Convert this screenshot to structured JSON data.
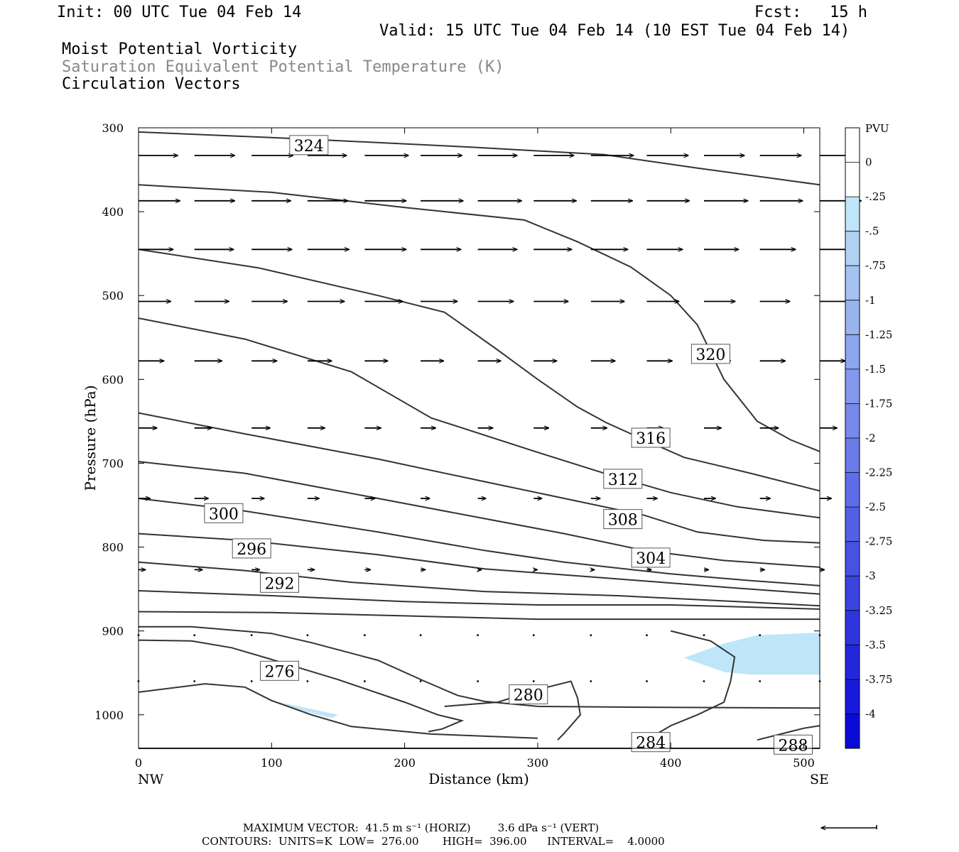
{
  "header": {
    "init": "Init: 00 UTC Tue 04 Feb 14",
    "fcst": "Fcst:   15 h",
    "valid": "Valid: 15 UTC Tue 04 Feb 14 (10 EST Tue 04 Feb 14)",
    "line1": "Moist Potential Vorticity",
    "line2": "Saturation Equivalent Potential Temperature (K)",
    "line3": "Circulation Vectors"
  },
  "footer": {
    "max_vector": "MAXIMUM VECTOR:  41.5 m s⁻¹ (HORIZ)        3.6 dPa s⁻¹ (VERT)",
    "contours": "CONTOURS:  UNITS=K  LOW=  276.00       HIGH=  396.00      INTERVAL=    4.0000"
  },
  "colors": {
    "contour": "#333333",
    "pv_fill": "#bfe6f8",
    "colorbar": [
      "#ffffff",
      "#ffffff",
      "#bfe6f8",
      "#b2d2f4",
      "#a6c2f2",
      "#9ab4f0",
      "#8ea6ee",
      "#8398ec",
      "#7789ea",
      "#6b7be8",
      "#5f6de6",
      "#535fe4",
      "#4751e2",
      "#3b43e0",
      "#2f35de",
      "#2327dc",
      "#1719da",
      "#0b0bd8"
    ]
  },
  "chart_data": {
    "type": "cross-section contour",
    "xlabel": "Distance (km)",
    "ylabel": "Pressure (hPa)",
    "xlim": [
      0,
      512
    ],
    "ylim": [
      1040,
      300
    ],
    "y_scale": "linear, inverted",
    "x_ticks": [
      "0",
      "100",
      "200",
      "300",
      "400",
      "500"
    ],
    "y_ticks": [
      "300",
      "400",
      "500",
      "600",
      "700",
      "800",
      "900",
      "1000"
    ],
    "left_end_label": "NW",
    "right_end_label": "SE",
    "colorbar": {
      "unit": "PVU",
      "tick_labels": [
        "0",
        "-.25",
        "-.5",
        "-.75",
        "-1",
        "-1.25",
        "-1.5",
        "-1.75",
        "-2",
        "-2.25",
        "-2.5",
        "-2.75",
        "-3",
        "-3.25",
        "-3.5",
        "-3.75",
        "-4"
      ]
    },
    "contours": [
      {
        "label": "324",
        "points": [
          [
            0,
            305
          ],
          [
            120,
            313
          ],
          [
            250,
            323
          ],
          [
            350,
            332
          ],
          [
            420,
            348
          ],
          [
            512,
            368
          ]
        ],
        "label_at": [
          128,
          321
        ]
      },
      {
        "label": "320",
        "points": [
          [
            0,
            368
          ],
          [
            100,
            377
          ],
          [
            200,
            395
          ],
          [
            290,
            410
          ],
          [
            330,
            436
          ],
          [
            370,
            466
          ],
          [
            400,
            500
          ],
          [
            420,
            535
          ],
          [
            440,
            600
          ],
          [
            465,
            650
          ],
          [
            490,
            672
          ],
          [
            512,
            686
          ]
        ],
        "label_at": [
          430,
          570
        ]
      },
      {
        "label": "316",
        "points": [
          [
            0,
            445
          ],
          [
            90,
            467
          ],
          [
            180,
            500
          ],
          [
            230,
            520
          ],
          [
            270,
            565
          ],
          [
            300,
            600
          ],
          [
            330,
            633
          ],
          [
            352,
            652
          ],
          [
            380,
            672
          ],
          [
            410,
            693
          ],
          [
            460,
            712
          ],
          [
            512,
            733
          ]
        ],
        "label_at": [
          385,
          670
        ]
      },
      {
        "label": "312",
        "points": [
          [
            0,
            527
          ],
          [
            80,
            552
          ],
          [
            160,
            591
          ],
          [
            220,
            646
          ],
          [
            300,
            687
          ],
          [
            350,
            712
          ],
          [
            400,
            735
          ],
          [
            450,
            752
          ],
          [
            512,
            765
          ]
        ],
        "label_at": [
          364,
          719
        ]
      },
      {
        "label": "308",
        "points": [
          [
            0,
            640
          ],
          [
            80,
            665
          ],
          [
            180,
            695
          ],
          [
            260,
            722
          ],
          [
            320,
            742
          ],
          [
            380,
            762
          ],
          [
            420,
            782
          ],
          [
            470,
            792
          ],
          [
            512,
            795
          ]
        ],
        "label_at": [
          364,
          767
        ]
      },
      {
        "label": "304",
        "points": [
          [
            0,
            698
          ],
          [
            80,
            712
          ],
          [
            180,
            742
          ],
          [
            260,
            766
          ],
          [
            320,
            784
          ],
          [
            380,
            804
          ],
          [
            440,
            816
          ],
          [
            512,
            824
          ]
        ],
        "label_at": [
          385,
          813
        ]
      },
      {
        "label": "300",
        "points": [
          [
            0,
            742
          ],
          [
            80,
            757
          ],
          [
            180,
            782
          ],
          [
            260,
            804
          ],
          [
            320,
            818
          ],
          [
            400,
            832
          ],
          [
            460,
            840
          ],
          [
            512,
            846
          ]
        ],
        "label_at": [
          64,
          760
        ]
      },
      {
        "label": "296",
        "points": [
          [
            0,
            784
          ],
          [
            80,
            792
          ],
          [
            180,
            809
          ],
          [
            260,
            826
          ],
          [
            360,
            838
          ],
          [
            450,
            849
          ],
          [
            512,
            856
          ]
        ],
        "label_at": [
          85,
          802
        ]
      },
      {
        "label": "292",
        "points": [
          [
            0,
            818
          ],
          [
            80,
            828
          ],
          [
            160,
            842
          ],
          [
            260,
            853
          ],
          [
            360,
            858
          ],
          [
            450,
            865
          ],
          [
            512,
            870
          ]
        ],
        "label_at": [
          106,
          843
        ]
      },
      {
        "label": "",
        "points": [
          [
            0,
            852
          ],
          [
            100,
            858
          ],
          [
            200,
            865
          ],
          [
            300,
            869
          ],
          [
            400,
            869
          ],
          [
            512,
            874
          ]
        ],
        "label_at": null
      },
      {
        "label": "",
        "points": [
          [
            0,
            877
          ],
          [
            100,
            878
          ],
          [
            200,
            882
          ],
          [
            300,
            886
          ],
          [
            400,
            886
          ],
          [
            512,
            886
          ]
        ],
        "label_at": null
      },
      {
        "label": "",
        "points": [
          [
            0,
            895
          ],
          [
            40,
            895
          ],
          [
            100,
            903
          ],
          [
            130,
            914
          ],
          [
            180,
            935
          ],
          [
            215,
            960
          ],
          [
            240,
            977
          ],
          [
            260,
            984
          ],
          [
            300,
            990
          ],
          [
            380,
            991
          ],
          [
            512,
            992
          ]
        ],
        "label_at": null
      },
      {
        "label": "276",
        "points": [
          [
            0,
            911
          ],
          [
            40,
            912
          ],
          [
            70,
            920
          ],
          [
            100,
            934
          ],
          [
            150,
            958
          ],
          [
            200,
            985
          ],
          [
            225,
            1000
          ],
          [
            243,
            1007
          ],
          [
            228,
            1017
          ],
          [
            218,
            1020
          ]
        ],
        "label_at": [
          106,
          948
        ]
      },
      {
        "label": "",
        "points": [
          [
            0,
            973
          ],
          [
            50,
            963
          ],
          [
            80,
            967
          ],
          [
            100,
            983
          ],
          [
            130,
            1000
          ],
          [
            160,
            1014
          ],
          [
            220,
            1023
          ],
          [
            300,
            1028
          ]
        ],
        "label_at": null
      },
      {
        "label": "280",
        "points": [
          [
            230,
            990
          ],
          [
            270,
            985
          ],
          [
            300,
            970
          ],
          [
            325,
            960
          ],
          [
            330,
            980
          ],
          [
            332,
            1000
          ],
          [
            320,
            1022
          ],
          [
            315,
            1030
          ]
        ],
        "label_at": [
          293,
          976
        ]
      },
      {
        "label": "284",
        "points": [
          [
            385,
            1027
          ],
          [
            400,
            1013
          ],
          [
            420,
            1000
          ],
          [
            440,
            985
          ],
          [
            445,
            960
          ],
          [
            448,
            931
          ],
          [
            430,
            912
          ],
          [
            400,
            900
          ]
        ],
        "label_at": [
          385,
          1033
        ]
      },
      {
        "label": "288",
        "points": [
          [
            465,
            1030
          ],
          [
            490,
            1020
          ],
          [
            500,
            1016
          ],
          [
            512,
            1013
          ]
        ],
        "label_at": [
          492,
          1036
        ]
      },
      {
        "label": "",
        "points": [
          [
            0,
            1040
          ],
          [
            512,
            1040
          ]
        ],
        "label_at": null
      }
    ],
    "pv_regions": [
      {
        "level": "-.25",
        "points": [
          [
            410,
            932
          ],
          [
            440,
            915
          ],
          [
            465,
            905
          ],
          [
            512,
            902
          ],
          [
            512,
            952
          ],
          [
            460,
            952
          ],
          [
            440,
            949
          ],
          [
            415,
            935
          ]
        ]
      },
      {
        "level": "-.25",
        "points": [
          [
            95,
            982
          ],
          [
            115,
            988
          ],
          [
            150,
            1000
          ],
          [
            145,
            1004
          ],
          [
            125,
            996
          ]
        ]
      }
    ],
    "vectors": [
      {
        "p": 333,
        "x": [
          0,
          42,
          85,
          127,
          170,
          212,
          255,
          297,
          340,
          382,
          425,
          467,
          512
        ],
        "u": [
          34,
          35,
          36,
          34,
          38,
          36,
          34,
          35,
          37,
          36,
          35,
          36,
          34
        ],
        "w": [
          0,
          0,
          0,
          0,
          0,
          0,
          0,
          0,
          0,
          0,
          0,
          0,
          0
        ]
      },
      {
        "p": 387,
        "x": [
          0,
          42,
          85,
          127,
          170,
          212,
          255,
          297,
          340,
          382,
          425,
          467,
          512
        ],
        "u": [
          36,
          35,
          34,
          35,
          36,
          37,
          38,
          37,
          36,
          37,
          38,
          37,
          36
        ],
        "w": [
          0,
          0,
          0,
          0,
          0,
          0,
          0,
          0,
          0,
          0,
          0,
          0,
          0
        ]
      },
      {
        "p": 445,
        "x": [
          0,
          42,
          85,
          127,
          170,
          212,
          255,
          297,
          340,
          382,
          425,
          467,
          512
        ],
        "u": [
          30,
          34,
          35,
          36,
          36,
          35,
          34,
          33,
          32,
          31,
          30,
          31,
          32
        ],
        "w": [
          0,
          0,
          0,
          0,
          0,
          0,
          0,
          0,
          0,
          0,
          0,
          0,
          0
        ]
      },
      {
        "p": 507,
        "x": [
          0,
          42,
          85,
          127,
          170,
          212,
          255,
          297,
          340,
          382,
          425,
          467,
          512
        ],
        "u": [
          28,
          30,
          31,
          32,
          33,
          32,
          31,
          30,
          29,
          28,
          27,
          26,
          27
        ],
        "w": [
          0,
          0,
          0,
          0,
          0,
          0,
          0,
          0,
          0,
          0,
          0,
          0,
          0
        ]
      },
      {
        "p": 578,
        "x": [
          0,
          42,
          85,
          127,
          170,
          212,
          255,
          297,
          340,
          382,
          425,
          467,
          512
        ],
        "u": [
          22,
          24,
          22,
          21,
          20,
          20,
          20,
          20,
          21,
          22,
          23,
          22,
          22
        ],
        "w": [
          0,
          0,
          0,
          0,
          0,
          0,
          0,
          0,
          0,
          0,
          0,
          0,
          0
        ]
      },
      {
        "p": 658,
        "x": [
          0,
          42,
          85,
          127,
          170,
          212,
          255,
          297,
          340,
          382,
          425,
          467,
          512
        ],
        "u": [
          16,
          15,
          16,
          15,
          14,
          13,
          13,
          13,
          14,
          14,
          15,
          16,
          15
        ],
        "w": [
          0,
          0,
          0,
          0,
          0,
          0,
          0,
          0,
          0,
          0,
          0,
          0,
          0
        ]
      },
      {
        "p": 742,
        "x": [
          0,
          42,
          85,
          127,
          170,
          212,
          255,
          297,
          340,
          382,
          425,
          467,
          512
        ],
        "u": [
          10,
          12,
          11,
          10,
          9,
          8,
          7,
          7,
          8,
          9,
          10,
          9,
          10
        ],
        "w": [
          0,
          0,
          0,
          0,
          0,
          0,
          0,
          0,
          0,
          0,
          0,
          0,
          0
        ]
      },
      {
        "p": 827,
        "x": [
          0,
          42,
          85,
          127,
          170,
          212,
          255,
          297,
          340,
          382,
          425,
          467,
          512
        ],
        "u": [
          6,
          7,
          7,
          6,
          5,
          4,
          3,
          3,
          3,
          4,
          4,
          4,
          4
        ],
        "w": [
          0,
          0,
          0,
          0,
          0,
          0,
          0,
          0,
          0,
          0,
          0,
          0,
          0
        ]
      },
      {
        "p": 905,
        "x": [
          0,
          42,
          85,
          127,
          170,
          212,
          255,
          297,
          340,
          382,
          425,
          467,
          512
        ],
        "u": [
          2,
          2,
          2,
          2,
          1,
          1,
          1,
          1,
          1,
          1,
          1,
          1,
          1
        ],
        "w": [
          0,
          0,
          0,
          0,
          0,
          0,
          0,
          0,
          0,
          0,
          0,
          0,
          0
        ]
      },
      {
        "p": 960,
        "x": [
          0,
          42,
          85,
          127,
          170,
          212,
          255,
          297,
          340,
          382,
          425,
          467,
          512
        ],
        "u": [
          1,
          1,
          1,
          1,
          1,
          1,
          1,
          1,
          1,
          1,
          1,
          1,
          1
        ],
        "w": [
          0,
          0,
          0,
          0,
          0,
          0,
          0,
          0,
          0,
          0,
          0,
          0,
          0
        ]
      }
    ]
  }
}
